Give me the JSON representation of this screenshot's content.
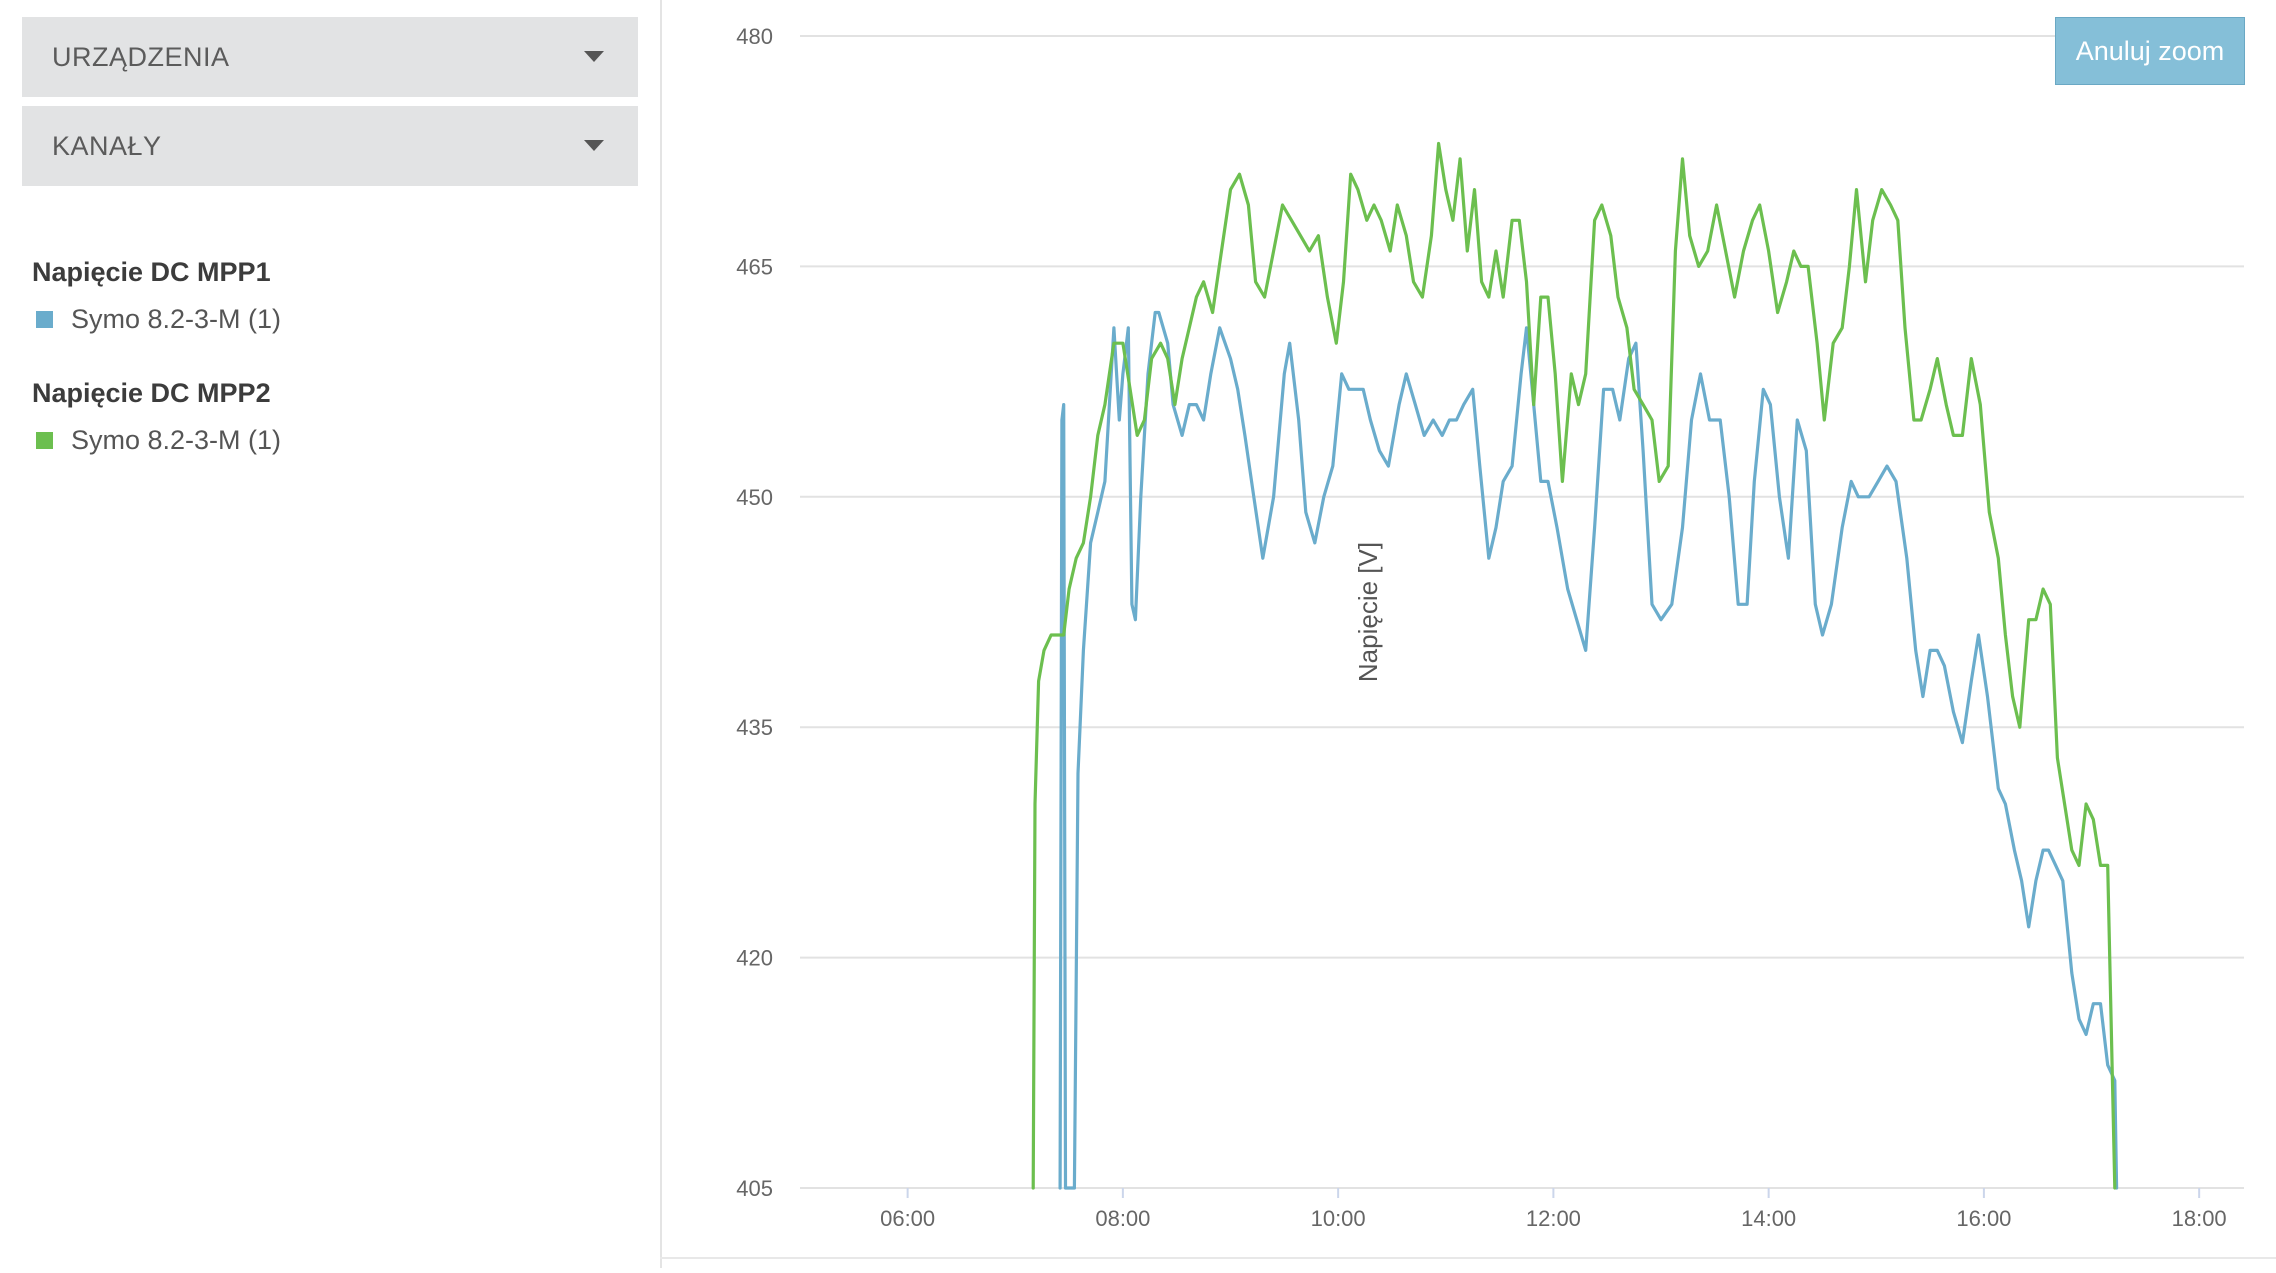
{
  "sidebar": {
    "devices_dropdown": {
      "label": "URZĄDZENIA"
    },
    "channels_dropdown": {
      "label": "KANAŁY"
    },
    "legend": [
      {
        "title": "Napięcie DC MPP1",
        "item": "Symo 8.2-3-M (1)",
        "color": "#6aaccc"
      },
      {
        "title": "Napięcie DC MPP2",
        "item": "Symo 8.2-3-M (1)",
        "color": "#6cbf4f"
      }
    ]
  },
  "zoom_button": {
    "label": "Anuluj zoom"
  },
  "chart_data": {
    "type": "line",
    "ylabel": "Napięcie [V]",
    "xlabel": "",
    "ylim": [
      405,
      480
    ],
    "xlim": [
      "05:00",
      "18:25"
    ],
    "yticks": [
      "480",
      "465",
      "450",
      "435",
      "420",
      "405"
    ],
    "xticks": [
      "06:00",
      "08:00",
      "10:00",
      "12:00",
      "14:00",
      "16:00",
      "18:00"
    ],
    "grid": true,
    "series": [
      {
        "name": "Symo 8.2-3-M (1)",
        "group": "Napięcie DC MPP1",
        "color": "#6aaccc",
        "points": [
          [
            "07:25",
            405
          ],
          [
            "07:26",
            455
          ],
          [
            "07:27",
            456
          ],
          [
            "07:28",
            405
          ],
          [
            "07:33",
            405
          ],
          [
            "07:35",
            432
          ],
          [
            "07:38",
            440
          ],
          [
            "07:42",
            447
          ],
          [
            "07:46",
            449
          ],
          [
            "07:50",
            451
          ],
          [
            "07:55",
            461
          ],
          [
            "07:58",
            455
          ],
          [
            "08:00",
            458
          ],
          [
            "08:03",
            461
          ],
          [
            "08:05",
            443
          ],
          [
            "08:07",
            442
          ],
          [
            "08:10",
            450
          ],
          [
            "08:14",
            458
          ],
          [
            "08:18",
            462
          ],
          [
            "08:20",
            462
          ],
          [
            "08:25",
            460
          ],
          [
            "08:28",
            456
          ],
          [
            "08:33",
            454
          ],
          [
            "08:37",
            456
          ],
          [
            "08:41",
            456
          ],
          [
            "08:45",
            455
          ],
          [
            "08:49",
            458
          ],
          [
            "08:54",
            461
          ],
          [
            "09:00",
            459
          ],
          [
            "09:04",
            457
          ],
          [
            "09:08",
            454
          ],
          [
            "09:13",
            450
          ],
          [
            "09:18",
            446
          ],
          [
            "09:24",
            450
          ],
          [
            "09:30",
            458
          ],
          [
            "09:33",
            460
          ],
          [
            "09:38",
            455
          ],
          [
            "09:42",
            449
          ],
          [
            "09:47",
            447
          ],
          [
            "09:52",
            450
          ],
          [
            "09:57",
            452
          ],
          [
            "10:02",
            458
          ],
          [
            "10:06",
            457
          ],
          [
            "10:10",
            457
          ],
          [
            "10:14",
            457
          ],
          [
            "10:18",
            455
          ],
          [
            "10:23",
            453
          ],
          [
            "10:28",
            452
          ],
          [
            "10:34",
            456
          ],
          [
            "10:38",
            458
          ],
          [
            "10:43",
            456
          ],
          [
            "10:48",
            454
          ],
          [
            "10:53",
            455
          ],
          [
            "10:58",
            454
          ],
          [
            "11:02",
            455
          ],
          [
            "11:06",
            455
          ],
          [
            "11:10",
            456
          ],
          [
            "11:15",
            457
          ],
          [
            "11:19",
            452
          ],
          [
            "11:24",
            446
          ],
          [
            "11:28",
            448
          ],
          [
            "11:32",
            451
          ],
          [
            "11:37",
            452
          ],
          [
            "11:42",
            458
          ],
          [
            "11:45",
            461
          ],
          [
            "11:49",
            456
          ],
          [
            "11:53",
            451
          ],
          [
            "11:57",
            451
          ],
          [
            "12:02",
            448
          ],
          [
            "12:08",
            444
          ],
          [
            "12:13",
            442
          ],
          [
            "12:18",
            440
          ],
          [
            "12:23",
            448
          ],
          [
            "12:28",
            457
          ],
          [
            "12:33",
            457
          ],
          [
            "12:37",
            455
          ],
          [
            "12:42",
            459
          ],
          [
            "12:46",
            460
          ],
          [
            "12:50",
            453
          ],
          [
            "12:55",
            443
          ],
          [
            "13:00",
            442
          ],
          [
            "13:06",
            443
          ],
          [
            "13:12",
            448
          ],
          [
            "13:17",
            455
          ],
          [
            "13:22",
            458
          ],
          [
            "13:27",
            455
          ],
          [
            "13:33",
            455
          ],
          [
            "13:38",
            450
          ],
          [
            "13:43",
            443
          ],
          [
            "13:48",
            443
          ],
          [
            "13:52",
            451
          ],
          [
            "13:57",
            457
          ],
          [
            "14:01",
            456
          ],
          [
            "14:06",
            450
          ],
          [
            "14:11",
            446
          ],
          [
            "14:16",
            455
          ],
          [
            "14:21",
            453
          ],
          [
            "14:26",
            443
          ],
          [
            "14:30",
            441
          ],
          [
            "14:35",
            443
          ],
          [
            "14:41",
            448
          ],
          [
            "14:46",
            451
          ],
          [
            "14:50",
            450
          ],
          [
            "14:56",
            450
          ],
          [
            "15:01",
            451
          ],
          [
            "15:06",
            452
          ],
          [
            "15:11",
            451
          ],
          [
            "15:17",
            446
          ],
          [
            "15:22",
            440
          ],
          [
            "15:26",
            437
          ],
          [
            "15:30",
            440
          ],
          [
            "15:34",
            440
          ],
          [
            "15:38",
            439
          ],
          [
            "15:43",
            436
          ],
          [
            "15:48",
            434
          ],
          [
            "15:53",
            438
          ],
          [
            "15:57",
            441
          ],
          [
            "16:02",
            437
          ],
          [
            "16:08",
            431
          ],
          [
            "16:12",
            430
          ],
          [
            "16:17",
            427
          ],
          [
            "16:21",
            425
          ],
          [
            "16:25",
            422
          ],
          [
            "16:29",
            425
          ],
          [
            "16:33",
            427
          ],
          [
            "16:36",
            427
          ],
          [
            "16:40",
            426
          ],
          [
            "16:44",
            425
          ],
          [
            "16:49",
            419
          ],
          [
            "16:53",
            416
          ],
          [
            "16:57",
            415
          ],
          [
            "17:01",
            417
          ],
          [
            "17:05",
            417
          ],
          [
            "17:09",
            413
          ],
          [
            "17:13",
            412
          ],
          [
            "17:14",
            405
          ]
        ]
      },
      {
        "name": "Symo 8.2-3-M (1)",
        "group": "Napięcie DC MPP2",
        "color": "#6cbf4f",
        "points": [
          [
            "07:10",
            405
          ],
          [
            "07:11",
            430
          ],
          [
            "07:13",
            438
          ],
          [
            "07:16",
            440
          ],
          [
            "07:20",
            441
          ],
          [
            "07:24",
            441
          ],
          [
            "07:27",
            441
          ],
          [
            "07:30",
            444
          ],
          [
            "07:34",
            446
          ],
          [
            "07:38",
            447
          ],
          [
            "07:42",
            450
          ],
          [
            "07:46",
            454
          ],
          [
            "07:50",
            456
          ],
          [
            "07:55",
            460
          ],
          [
            "08:00",
            460
          ],
          [
            "08:04",
            457
          ],
          [
            "08:08",
            454
          ],
          [
            "08:12",
            455
          ],
          [
            "08:16",
            459
          ],
          [
            "08:21",
            460
          ],
          [
            "08:25",
            459
          ],
          [
            "08:29",
            456
          ],
          [
            "08:33",
            459
          ],
          [
            "08:37",
            461
          ],
          [
            "08:41",
            463
          ],
          [
            "08:45",
            464
          ],
          [
            "08:50",
            462
          ],
          [
            "08:55",
            466
          ],
          [
            "09:00",
            470
          ],
          [
            "09:05",
            471
          ],
          [
            "09:10",
            469
          ],
          [
            "09:14",
            464
          ],
          [
            "09:19",
            463
          ],
          [
            "09:24",
            466
          ],
          [
            "09:29",
            469
          ],
          [
            "09:34",
            468
          ],
          [
            "09:39",
            467
          ],
          [
            "09:44",
            466
          ],
          [
            "09:49",
            467
          ],
          [
            "09:54",
            463
          ],
          [
            "09:59",
            460
          ],
          [
            "10:03",
            464
          ],
          [
            "10:07",
            471
          ],
          [
            "10:11",
            470
          ],
          [
            "10:16",
            468
          ],
          [
            "10:20",
            469
          ],
          [
            "10:24",
            468
          ],
          [
            "10:29",
            466
          ],
          [
            "10:33",
            469
          ],
          [
            "10:38",
            467
          ],
          [
            "10:42",
            464
          ],
          [
            "10:47",
            463
          ],
          [
            "10:52",
            467
          ],
          [
            "10:56",
            473
          ],
          [
            "11:00",
            470
          ],
          [
            "11:04",
            468
          ],
          [
            "11:08",
            472
          ],
          [
            "11:12",
            466
          ],
          [
            "11:16",
            470
          ],
          [
            "11:20",
            464
          ],
          [
            "11:24",
            463
          ],
          [
            "11:28",
            466
          ],
          [
            "11:32",
            463
          ],
          [
            "11:37",
            468
          ],
          [
            "11:41",
            468
          ],
          [
            "11:45",
            464
          ],
          [
            "11:49",
            456
          ],
          [
            "11:53",
            463
          ],
          [
            "11:57",
            463
          ],
          [
            "12:01",
            458
          ],
          [
            "12:05",
            451
          ],
          [
            "12:10",
            458
          ],
          [
            "12:14",
            456
          ],
          [
            "12:18",
            458
          ],
          [
            "12:23",
            468
          ],
          [
            "12:27",
            469
          ],
          [
            "12:32",
            467
          ],
          [
            "12:36",
            463
          ],
          [
            "12:41",
            461
          ],
          [
            "12:45",
            457
          ],
          [
            "12:50",
            456
          ],
          [
            "12:55",
            455
          ],
          [
            "12:59",
            451
          ],
          [
            "13:04",
            452
          ],
          [
            "13:08",
            466
          ],
          [
            "13:12",
            472
          ],
          [
            "13:16",
            467
          ],
          [
            "13:21",
            465
          ],
          [
            "13:26",
            466
          ],
          [
            "13:31",
            469
          ],
          [
            "13:36",
            466
          ],
          [
            "13:41",
            463
          ],
          [
            "13:46",
            466
          ],
          [
            "13:51",
            468
          ],
          [
            "13:55",
            469
          ],
          [
            "14:00",
            466
          ],
          [
            "14:05",
            462
          ],
          [
            "14:10",
            464
          ],
          [
            "14:14",
            466
          ],
          [
            "14:18",
            465
          ],
          [
            "14:22",
            465
          ],
          [
            "14:27",
            460
          ],
          [
            "14:31",
            455
          ],
          [
            "14:36",
            460
          ],
          [
            "14:41",
            461
          ],
          [
            "14:45",
            465
          ],
          [
            "14:49",
            470
          ],
          [
            "14:54",
            464
          ],
          [
            "14:58",
            468
          ],
          [
            "15:03",
            470
          ],
          [
            "15:08",
            469
          ],
          [
            "15:12",
            468
          ],
          [
            "15:16",
            461
          ],
          [
            "15:21",
            455
          ],
          [
            "15:25",
            455
          ],
          [
            "15:30",
            457
          ],
          [
            "15:34",
            459
          ],
          [
            "15:39",
            456
          ],
          [
            "15:43",
            454
          ],
          [
            "15:48",
            454
          ],
          [
            "15:53",
            459
          ],
          [
            "15:58",
            456
          ],
          [
            "16:03",
            449
          ],
          [
            "16:08",
            446
          ],
          [
            "16:12",
            441
          ],
          [
            "16:16",
            437
          ],
          [
            "16:20",
            435
          ],
          [
            "16:25",
            442
          ],
          [
            "16:29",
            442
          ],
          [
            "16:33",
            444
          ],
          [
            "16:37",
            443
          ],
          [
            "16:41",
            433
          ],
          [
            "16:45",
            430
          ],
          [
            "16:49",
            427
          ],
          [
            "16:53",
            426
          ],
          [
            "16:57",
            430
          ],
          [
            "17:01",
            429
          ],
          [
            "17:05",
            426
          ],
          [
            "17:09",
            426
          ],
          [
            "17:13",
            405
          ]
        ]
      }
    ]
  }
}
